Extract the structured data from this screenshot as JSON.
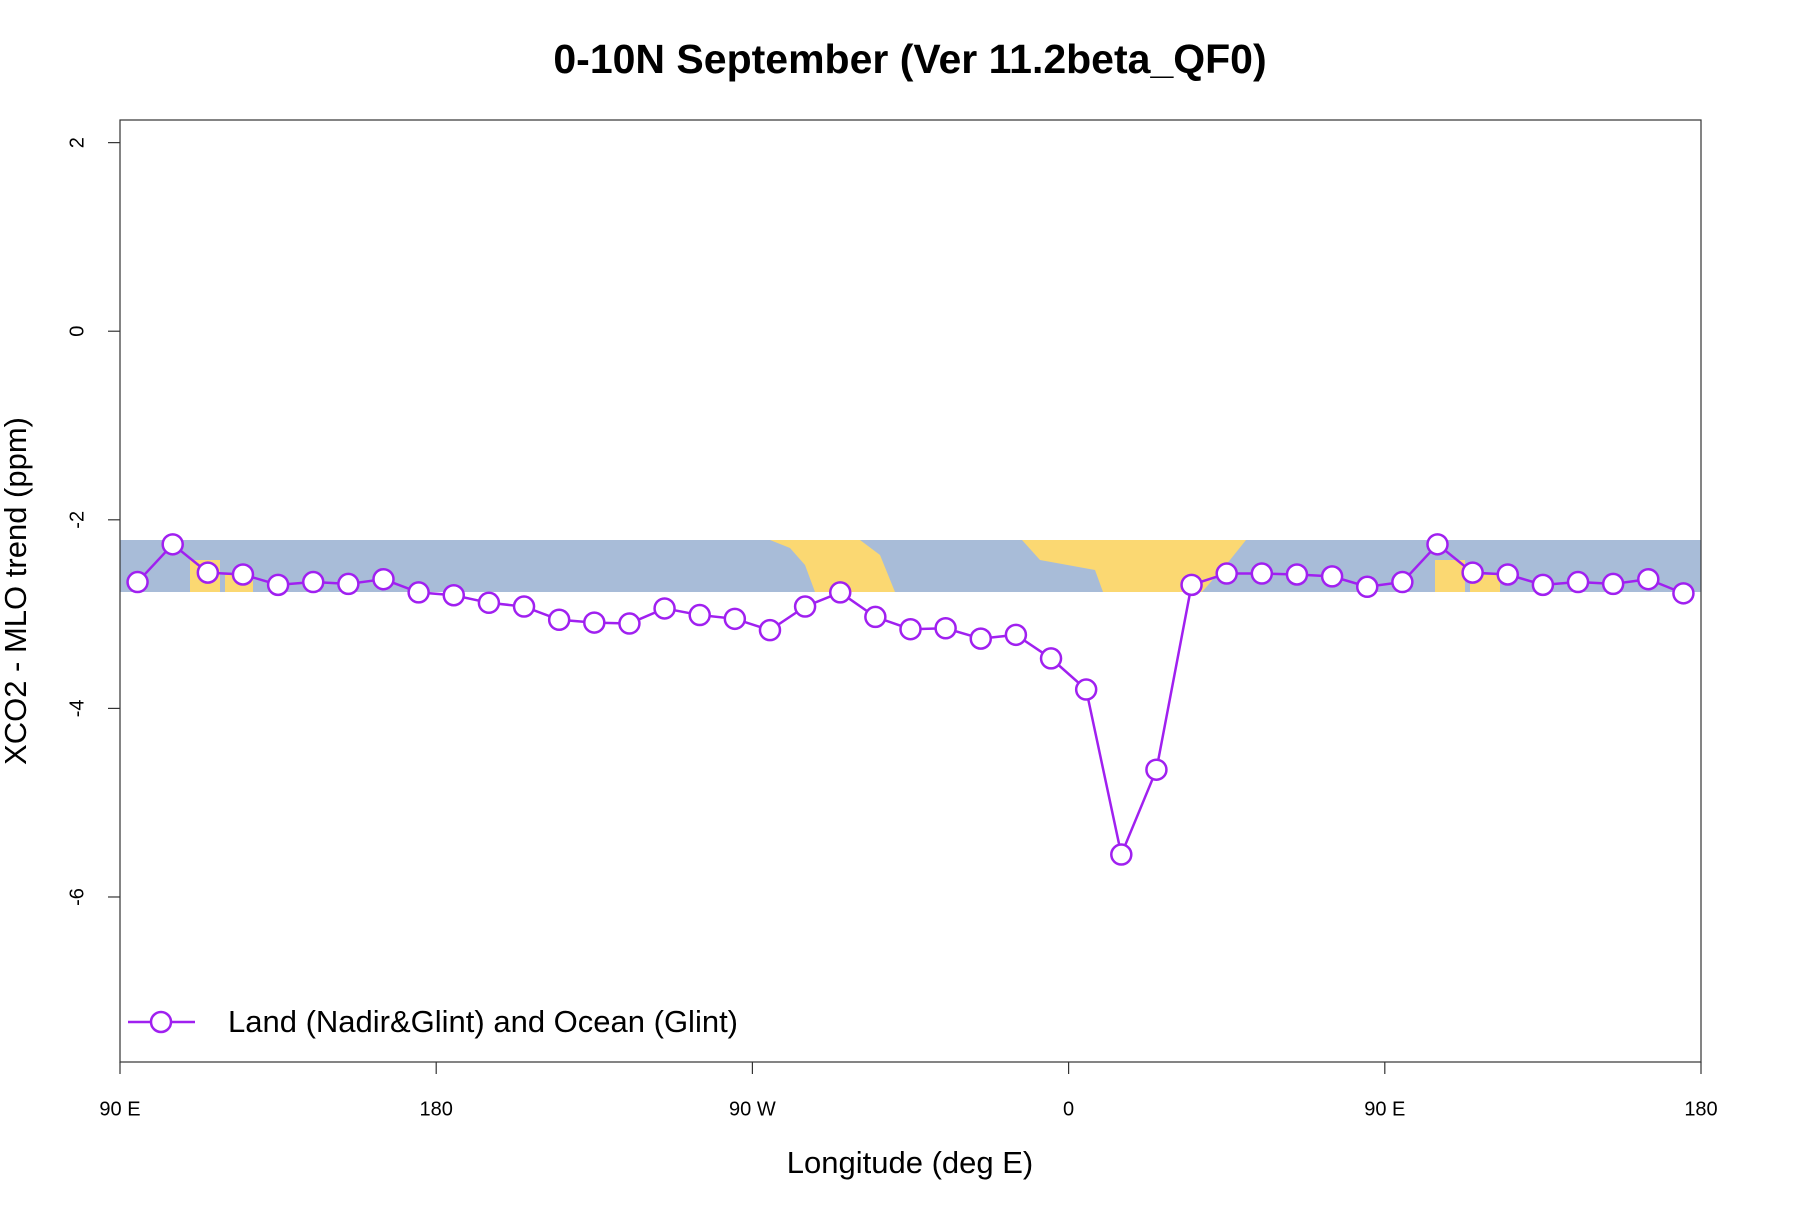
{
  "chart_data": {
    "type": "line",
    "title": "0-10N September (Ver 11.2beta_QF0)",
    "x_label": "Longitude (deg E)",
    "y_label": "XCO2 - MLO trend (ppm)",
    "x": [
      95,
      105,
      115,
      125,
      135,
      145,
      155,
      165,
      175,
      185,
      195,
      205,
      215,
      225,
      235,
      245,
      255,
      265,
      275,
      285,
      295,
      305,
      315,
      325,
      335,
      345,
      355,
      365,
      375,
      385,
      395,
      405,
      415,
      425,
      435,
      445,
      455,
      465,
      475,
      485,
      495,
      505,
      515,
      525,
      535
    ],
    "series": [
      {
        "name": "Land (Nadir&Glint) and Ocean (Glint)",
        "color": "#a020f0",
        "values": [
          -2.66,
          -2.26,
          -2.56,
          -2.58,
          -2.69,
          -2.66,
          -2.68,
          -2.63,
          -2.77,
          -2.8,
          -2.88,
          -2.92,
          -3.06,
          -3.09,
          -3.1,
          -2.94,
          -3.01,
          -3.05,
          -3.17,
          -2.92,
          -2.77,
          -3.03,
          -3.16,
          -3.15,
          -3.26,
          -3.22,
          -3.47,
          -3.8,
          -5.55,
          -4.65,
          -2.69,
          -2.57,
          -2.57,
          -2.58,
          -2.6,
          -2.71,
          -2.66,
          -2.26,
          -2.56,
          -2.58,
          -2.69,
          -2.66,
          -2.68,
          -2.63,
          -2.78
        ]
      }
    ],
    "xlim": [
      90,
      540
    ],
    "xticks": [
      {
        "value": 90,
        "label": "90 E"
      },
      180,
      {
        "value": 270,
        "label": "90 W"
      },
      {
        "value": 360,
        "label": "0"
      },
      {
        "value": 450,
        "label": "90 E"
      },
      {
        "value": 540,
        "label": "180"
      }
    ],
    "ylim": [
      -7.75,
      2.24
    ],
    "yticks": [
      2,
      0,
      -2,
      -4,
      -6
    ],
    "legend": "bottom-left"
  }
}
